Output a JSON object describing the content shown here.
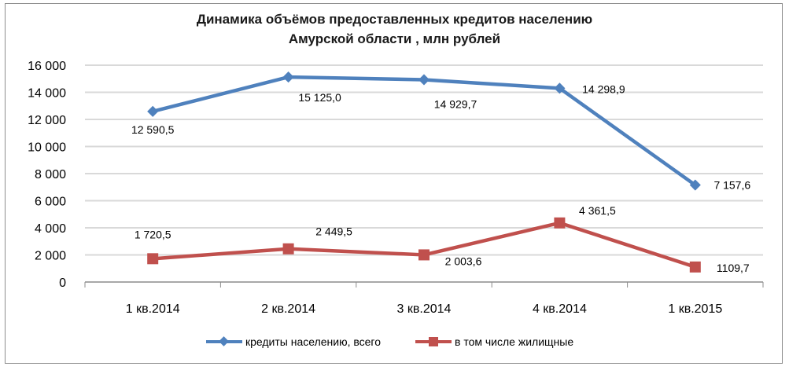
{
  "chart_data": {
    "type": "line",
    "title": "Динамика объёмов предоставленных кредитов населению Амурской области , млн рублей",
    "title_lines": [
      "Динамика объёмов предоставленных кредитов населению",
      "Амурской области , млн рублей"
    ],
    "categories": [
      "1 кв.2014",
      "2 кв.2014",
      "3 кв.2014",
      "4 кв.2014",
      "1 кв.2015"
    ],
    "ylim": [
      0,
      16000
    ],
    "yticks": [
      0,
      2000,
      4000,
      6000,
      8000,
      10000,
      12000,
      14000,
      16000
    ],
    "ytick_labels": [
      "0",
      "2 000",
      "4 000",
      "6 000",
      "8 000",
      "10 000",
      "12 000",
      "14 000",
      "16 000"
    ],
    "grid": true,
    "legend_position": "bottom",
    "series": [
      {
        "name": "кредиты населению, всего",
        "values": [
          12590.5,
          15125.0,
          14929.7,
          14298.9,
          7157.6
        ],
        "labels": [
          "12 590,5",
          "15 125,0",
          "14 929,7",
          "14 298,9",
          "7 157,6"
        ],
        "color": "#4f81bd",
        "marker": "diamond"
      },
      {
        "name": "в том числе жилищные",
        "values": [
          1720.5,
          2449.5,
          2003.6,
          4361.5,
          1109.7
        ],
        "labels": [
          "1 720,5",
          "2 449,5",
          "2 003,6",
          "4 361,5",
          "1109,7"
        ],
        "color": "#c0504d",
        "marker": "square"
      }
    ]
  }
}
